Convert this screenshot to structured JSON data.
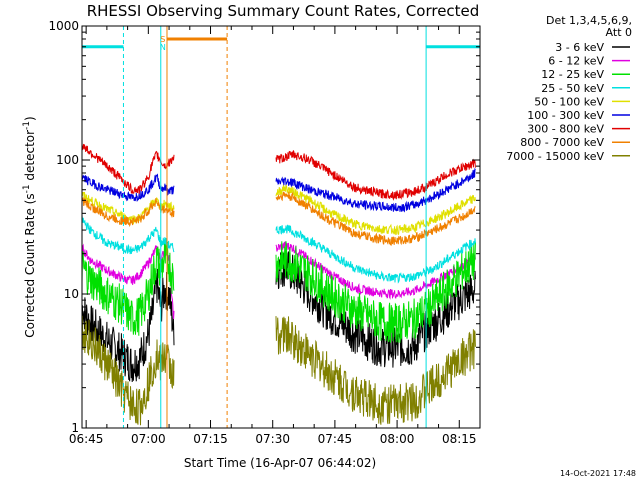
{
  "chart_data": {
    "type": "line",
    "title": "RHESSI Observing Summary Count Rates, Corrected",
    "xlabel": "Start Time (16-Apr-07 06:44:02)",
    "ylabel_main": "Corrected Count Rate (s",
    "ylabel_exp1": "-1",
    "ylabel_mid": " detector",
    "ylabel_exp2": "-1",
    "ylabel_end": ")",
    "yscale": "log",
    "x_range_min": [
      404,
      500
    ],
    "ylim": [
      1,
      1000
    ],
    "x_ticks": [
      {
        "label": "06:45",
        "min": 405
      },
      {
        "label": "07:00",
        "min": 420
      },
      {
        "label": "07:15",
        "min": 435
      },
      {
        "label": "07:30",
        "min": 450
      },
      {
        "label": "07:45",
        "min": 465
      },
      {
        "label": "08:00",
        "min": 480
      },
      {
        "label": "08:15",
        "min": 495
      }
    ],
    "y_ticks": [
      {
        "label": "1",
        "value": 1
      },
      {
        "label": "10",
        "value": 10
      },
      {
        "label": "100",
        "value": 100
      },
      {
        "label": "1000",
        "value": 1000
      }
    ],
    "legend_header": [
      "Det 1,3,4,5,6,9,",
      "Att 0"
    ],
    "gaps_min": [
      [
        426.2,
        450.8
      ]
    ],
    "series": [
      {
        "name": "3 - 6 keV",
        "color": "#000000",
        "points": [
          [
            404,
            8
          ],
          [
            406,
            6
          ],
          [
            410,
            4.5
          ],
          [
            414,
            3.5
          ],
          [
            416,
            3
          ],
          [
            418,
            3.3
          ],
          [
            420,
            5
          ],
          [
            421,
            7
          ],
          [
            422,
            12
          ],
          [
            423,
            8
          ],
          [
            424,
            11
          ],
          [
            425,
            10
          ],
          [
            426,
            5.5
          ],
          [
            451,
            15
          ],
          [
            453,
            16
          ],
          [
            455,
            14
          ],
          [
            459,
            10
          ],
          [
            464,
            7
          ],
          [
            470,
            5
          ],
          [
            476,
            4
          ],
          [
            480,
            4
          ],
          [
            484,
            4
          ],
          [
            486,
            5
          ],
          [
            490,
            6.5
          ],
          [
            494,
            8.5
          ],
          [
            498,
            10.5
          ],
          [
            499,
            11
          ]
        ]
      },
      {
        "name": "6 - 12 keV",
        "color": "#e000e0",
        "points": [
          [
            404,
            22
          ],
          [
            406,
            18
          ],
          [
            410,
            15
          ],
          [
            414,
            13
          ],
          [
            416,
            12.5
          ],
          [
            418,
            14
          ],
          [
            420,
            17
          ],
          [
            422,
            22
          ],
          [
            423,
            18
          ],
          [
            424,
            21
          ],
          [
            425,
            19
          ],
          [
            426,
            7
          ],
          [
            451,
            22
          ],
          [
            453,
            23
          ],
          [
            455,
            22
          ],
          [
            459,
            18
          ],
          [
            464,
            14
          ],
          [
            470,
            11
          ],
          [
            476,
            10.2
          ],
          [
            480,
            10
          ],
          [
            484,
            10.5
          ],
          [
            488,
            12
          ],
          [
            492,
            14
          ],
          [
            496,
            16.5
          ],
          [
            499,
            18.5
          ]
        ]
      },
      {
        "name": "12 - 25 keV",
        "color": "#00e000",
        "points": [
          [
            404,
            16
          ],
          [
            406,
            13
          ],
          [
            410,
            10
          ],
          [
            414,
            8
          ],
          [
            416,
            6.5
          ],
          [
            418,
            7
          ],
          [
            420,
            10
          ],
          [
            422,
            18
          ],
          [
            423,
            15
          ],
          [
            424,
            19
          ],
          [
            425,
            17
          ],
          [
            426,
            13
          ],
          [
            451,
            17
          ],
          [
            453,
            18
          ],
          [
            455,
            17
          ],
          [
            459,
            14
          ],
          [
            464,
            10
          ],
          [
            470,
            7.5
          ],
          [
            476,
            6.2
          ],
          [
            480,
            6
          ],
          [
            484,
            6.5
          ],
          [
            488,
            8
          ],
          [
            492,
            11
          ],
          [
            496,
            15
          ],
          [
            499,
            18
          ]
        ]
      },
      {
        "name": "25 - 50 keV",
        "color": "#00e0e0",
        "points": [
          [
            404,
            36
          ],
          [
            406,
            30
          ],
          [
            410,
            24
          ],
          [
            414,
            22
          ],
          [
            416,
            21
          ],
          [
            418,
            22
          ],
          [
            420,
            26
          ],
          [
            422,
            30
          ],
          [
            423,
            24
          ],
          [
            424,
            25
          ],
          [
            425,
            23
          ],
          [
            426,
            22
          ],
          [
            451,
            30
          ],
          [
            453,
            31
          ],
          [
            455,
            29
          ],
          [
            459,
            25
          ],
          [
            464,
            20
          ],
          [
            470,
            15.5
          ],
          [
            476,
            13.5
          ],
          [
            480,
            13
          ],
          [
            484,
            13.5
          ],
          [
            488,
            15
          ],
          [
            492,
            18
          ],
          [
            496,
            22
          ],
          [
            499,
            25
          ]
        ]
      },
      {
        "name": "50 - 100 keV",
        "color": "#e0e000",
        "points": [
          [
            404,
            55
          ],
          [
            406,
            50
          ],
          [
            410,
            43
          ],
          [
            414,
            38
          ],
          [
            416,
            36
          ],
          [
            418,
            37
          ],
          [
            420,
            44
          ],
          [
            422,
            50
          ],
          [
            423,
            45
          ],
          [
            424,
            47
          ],
          [
            425,
            45
          ],
          [
            426,
            44
          ],
          [
            451,
            57
          ],
          [
            453,
            62
          ],
          [
            455,
            58
          ],
          [
            459,
            50
          ],
          [
            464,
            40
          ],
          [
            470,
            33
          ],
          [
            476,
            30.5
          ],
          [
            480,
            30
          ],
          [
            484,
            31
          ],
          [
            488,
            35
          ],
          [
            492,
            40
          ],
          [
            496,
            47
          ],
          [
            499,
            52
          ]
        ]
      },
      {
        "name": "100 - 300 keV",
        "color": "#0000e0",
        "points": [
          [
            404,
            75
          ],
          [
            406,
            68
          ],
          [
            410,
            60
          ],
          [
            414,
            55
          ],
          [
            416,
            52
          ],
          [
            418,
            55
          ],
          [
            420,
            60
          ],
          [
            422,
            75
          ],
          [
            423,
            62
          ],
          [
            424,
            62
          ],
          [
            425,
            58
          ],
          [
            426,
            60
          ],
          [
            451,
            68
          ],
          [
            453,
            70
          ],
          [
            455,
            68
          ],
          [
            459,
            60
          ],
          [
            464,
            54
          ],
          [
            470,
            47
          ],
          [
            476,
            45
          ],
          [
            480,
            44
          ],
          [
            484,
            46
          ],
          [
            488,
            52
          ],
          [
            492,
            60
          ],
          [
            496,
            70
          ],
          [
            499,
            80
          ]
        ]
      },
      {
        "name": "300 - 800 keV",
        "color": "#e00000",
        "points": [
          [
            404,
            130
          ],
          [
            406,
            115
          ],
          [
            410,
            90
          ],
          [
            414,
            70
          ],
          [
            416,
            60
          ],
          [
            418,
            60
          ],
          [
            420,
            75
          ],
          [
            421,
            95
          ],
          [
            422,
            110
          ],
          [
            423,
            98
          ],
          [
            424,
            90
          ],
          [
            425,
            95
          ],
          [
            426,
            105
          ],
          [
            451,
            100
          ],
          [
            453,
            105
          ],
          [
            455,
            110
          ],
          [
            459,
            100
          ],
          [
            464,
            80
          ],
          [
            470,
            62
          ],
          [
            476,
            56
          ],
          [
            480,
            55
          ],
          [
            484,
            58
          ],
          [
            488,
            65
          ],
          [
            492,
            78
          ],
          [
            496,
            88
          ],
          [
            499,
            95
          ]
        ]
      },
      {
        "name": "800 - 7000 keV",
        "color": "#f08000",
        "points": [
          [
            404,
            50
          ],
          [
            406,
            45
          ],
          [
            410,
            38
          ],
          [
            414,
            35
          ],
          [
            416,
            35
          ],
          [
            418,
            36
          ],
          [
            420,
            42
          ],
          [
            422,
            50
          ],
          [
            423,
            42
          ],
          [
            424,
            43
          ],
          [
            425,
            41
          ],
          [
            426,
            40
          ],
          [
            451,
            52
          ],
          [
            453,
            55
          ],
          [
            455,
            52
          ],
          [
            459,
            44
          ],
          [
            464,
            35
          ],
          [
            470,
            28
          ],
          [
            476,
            25.5
          ],
          [
            480,
            25
          ],
          [
            484,
            26
          ],
          [
            488,
            29
          ],
          [
            492,
            33
          ],
          [
            496,
            38
          ],
          [
            499,
            44
          ]
        ]
      },
      {
        "name": "7000 - 15000 keV",
        "color": "#808000",
        "points": [
          [
            404,
            5.5
          ],
          [
            406,
            4.5
          ],
          [
            410,
            3
          ],
          [
            414,
            1.8
          ],
          [
            416,
            1.5
          ],
          [
            418,
            1.4
          ],
          [
            420,
            2.2
          ],
          [
            422,
            3.5
          ],
          [
            423,
            3
          ],
          [
            424,
            3.5
          ],
          [
            425,
            3
          ],
          [
            426,
            2.5
          ],
          [
            451,
            5
          ],
          [
            453,
            5
          ],
          [
            455,
            4.5
          ],
          [
            459,
            3.5
          ],
          [
            464,
            2.5
          ],
          [
            470,
            1.8
          ],
          [
            476,
            1.5
          ],
          [
            480,
            1.5
          ],
          [
            484,
            1.6
          ],
          [
            488,
            2
          ],
          [
            492,
            2.6
          ],
          [
            496,
            3.4
          ],
          [
            499,
            4
          ]
        ]
      }
    ],
    "markers": [
      {
        "kind": "attenuator_bar",
        "color": "#00e0e0",
        "x0": 404,
        "x1": 414,
        "y": 700
      },
      {
        "kind": "attenuator_bar",
        "color": "#00e0e0",
        "x0": 487,
        "x1": 500,
        "y": 700
      },
      {
        "kind": "saa_bar",
        "color": "#f08000",
        "x0": 424.5,
        "x1": 439,
        "y": 800
      },
      {
        "kind": "vline_dash",
        "color": "#00e0e0",
        "x": 414
      },
      {
        "kind": "vline_solid",
        "color": "#f08000",
        "x": 424.5
      },
      {
        "kind": "vline_solid",
        "color": "#00e0e0",
        "x": 423
      },
      {
        "kind": "vline_dash",
        "color": "#f08000",
        "x": 439
      },
      {
        "kind": "vline_solid",
        "color": "#00e0e0",
        "x": 487
      },
      {
        "kind": "vline_dash",
        "color": "#00e0e0",
        "x": 500
      }
    ],
    "flag_labels": [
      {
        "text": "S",
        "color": "#f08000"
      },
      {
        "text": "N",
        "color": "#00e0e0"
      }
    ],
    "footer_date": "14-Oct-2021 17:48"
  }
}
